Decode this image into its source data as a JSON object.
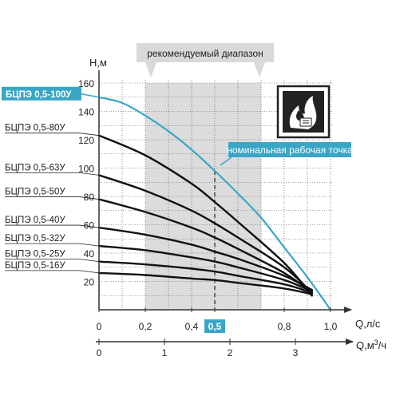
{
  "chart_data": {
    "type": "line",
    "ylabel": "Н,м",
    "xlabel": "Q,л/с",
    "x2label_prefix": "Q,м",
    "x2label_sup": "3",
    "x2label_suffix": "/ч",
    "xlim": [
      0,
      1.0
    ],
    "ylim": [
      0,
      160
    ],
    "x_ticks": [
      "0",
      "0,2",
      "0,4",
      "0,5",
      "0,8",
      "1,0"
    ],
    "x_tick_values": [
      0,
      0.2,
      0.4,
      0.5,
      0.8,
      1.0
    ],
    "y_ticks": [
      "20",
      "40",
      "60",
      "80",
      "100",
      "120",
      "140",
      "160"
    ],
    "y_tick_values": [
      20,
      40,
      60,
      80,
      100,
      120,
      140,
      160
    ],
    "x2_ticks": [
      "0",
      "1",
      "2",
      "3"
    ],
    "x2_tick_values": [
      0,
      1,
      2,
      3
    ],
    "grid": true,
    "recommended_range": [
      0.2,
      0.7
    ],
    "recommended_range_label": "рекомендуемый диапазон",
    "nominal_point_label": "номинальная рабочая точка",
    "nominal_q": 0.5,
    "accent_color": "#3aa6c6",
    "series": [
      {
        "name": "БЦПЭ 0,5-100У",
        "x": [
          0,
          0.1,
          0.2,
          0.3,
          0.4,
          0.5,
          0.6,
          0.7,
          0.8,
          0.9,
          1.0
        ],
        "y": [
          150,
          146,
          137,
          126,
          113,
          98,
          82,
          65,
          44,
          23,
          0
        ],
        "highlight": true
      },
      {
        "name": "БЦПЭ 0,5-80У",
        "x": [
          0,
          0.2,
          0.4,
          0.5,
          0.6,
          0.8,
          0.92
        ],
        "y": [
          123,
          109,
          89,
          76,
          62,
          33,
          10
        ]
      },
      {
        "name": "БЦПЭ 0,5-63У",
        "x": [
          0,
          0.2,
          0.4,
          0.5,
          0.6,
          0.8,
          0.92
        ],
        "y": [
          95,
          84,
          70,
          61,
          51,
          30,
          12
        ]
      },
      {
        "name": "БЦПЭ 0,5-50У",
        "x": [
          0,
          0.2,
          0.4,
          0.5,
          0.6,
          0.8,
          0.92
        ],
        "y": [
          78,
          69,
          58,
          51,
          43,
          26,
          12
        ]
      },
      {
        "name": "БЦПЭ 0,5-40У",
        "x": [
          0,
          0.2,
          0.4,
          0.5,
          0.6,
          0.8,
          0.92
        ],
        "y": [
          58,
          53,
          46,
          41,
          36,
          24,
          14
        ]
      },
      {
        "name": "БЦПЭ 0,5-32У",
        "x": [
          0,
          0.2,
          0.4,
          0.5,
          0.6,
          0.8,
          0.92
        ],
        "y": [
          45,
          42,
          37,
          34,
          30,
          21,
          13
        ]
      },
      {
        "name": "БЦПЭ 0,5-25У",
        "x": [
          0,
          0.2,
          0.4,
          0.5,
          0.6,
          0.8,
          0.92
        ],
        "y": [
          34,
          32,
          29,
          27,
          24,
          18,
          12
        ]
      },
      {
        "name": "БЦПЭ 0,5-16У",
        "x": [
          0,
          0.2,
          0.4,
          0.5,
          0.6,
          0.8,
          0.92
        ],
        "y": [
          26,
          24.5,
          22,
          21,
          19,
          15,
          11
        ]
      }
    ]
  }
}
